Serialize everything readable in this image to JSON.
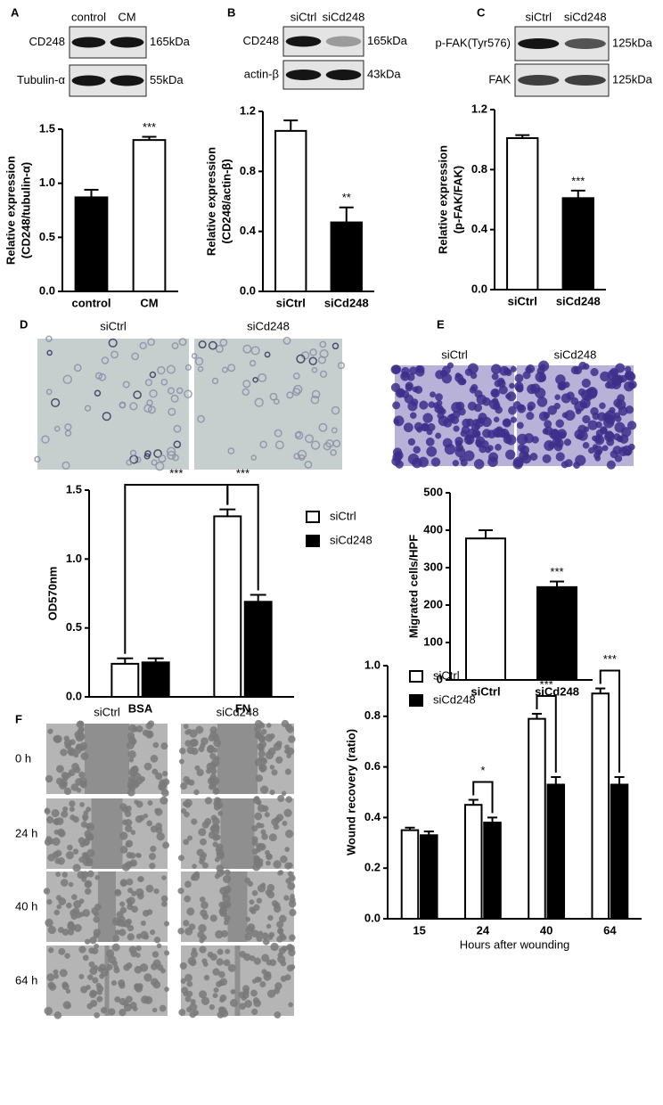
{
  "chart_data": [
    {
      "type": "bar",
      "panel": "A",
      "categories": [
        "control",
        "CM"
      ],
      "values": [
        0.87,
        1.4
      ],
      "errors": [
        0.07,
        0.03
      ],
      "colors": [
        "#000000",
        "#ffffff"
      ],
      "ylabel": [
        "Relative expression",
        "(CD248/tubulin-α)"
      ],
      "ylim": [
        0,
        1.5
      ],
      "yticks": [
        {
          "value": 0,
          "label": "0.0"
        },
        {
          "value": 0.5,
          "label": "0.5"
        },
        {
          "value": 1,
          "label": "1.0"
        },
        {
          "value": 1.5,
          "label": "1.5"
        }
      ],
      "significance": [
        null,
        "***"
      ]
    },
    {
      "type": "bar",
      "panel": "B",
      "categories": [
        "siCtrl",
        "siCd248"
      ],
      "values": [
        1.07,
        0.46
      ],
      "errors": [
        0.07,
        0.1
      ],
      "colors": [
        "#ffffff",
        "#000000"
      ],
      "ylabel": [
        "Relative expression",
        "(CD248/actin-β)"
      ],
      "ylim": [
        0,
        1.2
      ],
      "yticks": [
        {
          "value": 0,
          "label": "0.0"
        },
        {
          "value": 0.4,
          "label": "0.4"
        },
        {
          "value": 0.8,
          "label": "0.8"
        },
        {
          "value": 1.2,
          "label": "1.2"
        }
      ],
      "significance": [
        null,
        "**"
      ]
    },
    {
      "type": "bar",
      "panel": "C",
      "categories": [
        "siCtrl",
        "siCd248"
      ],
      "values": [
        1.01,
        0.61
      ],
      "errors": [
        0.02,
        0.05
      ],
      "colors": [
        "#ffffff",
        "#000000"
      ],
      "ylabel": [
        "Relative expression",
        "(p-FAK/FAK)"
      ],
      "ylim": [
        0,
        1.2
      ],
      "yticks": [
        {
          "value": 0,
          "label": "0.0"
        },
        {
          "value": 0.4,
          "label": "0.4"
        },
        {
          "value": 0.8,
          "label": "0.8"
        },
        {
          "value": 1.2,
          "label": "1.2"
        }
      ],
      "significance": [
        null,
        "***"
      ]
    },
    {
      "type": "grouped_bar",
      "panel": "D",
      "categories": [
        "BSA",
        "FN"
      ],
      "series": [
        {
          "name": "siCtrl",
          "color": "#ffffff",
          "values": [
            0.24,
            1.31
          ],
          "errors": [
            0.04,
            0.05
          ]
        },
        {
          "name": "siCd248",
          "color": "#000000",
          "values": [
            0.25,
            0.69
          ],
          "errors": [
            0.03,
            0.05
          ]
        }
      ],
      "ylabel": [
        "OD570nm"
      ],
      "ylim": [
        0,
        1.5
      ],
      "yticks": [
        {
          "value": 0,
          "label": "0.0"
        },
        {
          "value": 0.5,
          "label": "0.5"
        },
        {
          "value": 1,
          "label": "1.0"
        },
        {
          "value": 1.5,
          "label": "1.5"
        }
      ],
      "brackets": [
        "***",
        "***"
      ],
      "legend": "right"
    },
    {
      "type": "bar",
      "panel": "E",
      "categories": [
        "siCtrl",
        "siCd248"
      ],
      "values": [
        378,
        248
      ],
      "errors": [
        22,
        15
      ],
      "colors": [
        "#ffffff",
        "#000000"
      ],
      "ylabel": [
        "Migrated cells/HPF"
      ],
      "ylim": [
        0,
        500
      ],
      "yticks": [
        0,
        100,
        200,
        300,
        400,
        500
      ],
      "significance": [
        null,
        "***"
      ]
    },
    {
      "type": "grouped_bar",
      "panel": "F",
      "categories": [
        "15",
        "24",
        "40",
        "64"
      ],
      "series": [
        {
          "name": "siCtrl",
          "color": "#ffffff",
          "values": [
            0.35,
            0.45,
            0.79,
            0.89
          ],
          "errors": [
            0.01,
            0.02,
            0.02,
            0.02
          ]
        },
        {
          "name": "siCd248",
          "color": "#000000",
          "values": [
            0.33,
            0.38,
            0.53,
            0.53
          ],
          "errors": [
            0.015,
            0.02,
            0.03,
            0.03
          ]
        }
      ],
      "xlabel": "Hours after wounding",
      "ylabel": [
        "Wound recovery (ratio)"
      ],
      "ylim": [
        0,
        1.0
      ],
      "yticks": [
        {
          "value": 0,
          "label": "0.0"
        },
        {
          "value": 0.2,
          "label": "0.2"
        },
        {
          "value": 0.4,
          "label": "0.4"
        },
        {
          "value": 0.6,
          "label": "0.6"
        },
        {
          "value": 0.8,
          "label": "0.8"
        },
        {
          "value": 1,
          "label": "1.0"
        }
      ],
      "significance": [
        null,
        "*",
        "***",
        "***"
      ],
      "legend": "upper left"
    }
  ],
  "blots": [
    {
      "lanes": [
        "control",
        "CM"
      ],
      "rows": [
        {
          "label": "CD248",
          "size": "165kDa"
        },
        {
          "label": "Tubulin-α",
          "size": "55kDa"
        }
      ]
    },
    {
      "lanes": [
        "siCtrl",
        "siCd248"
      ],
      "rows": [
        {
          "label": "CD248",
          "size": "165kDa"
        },
        {
          "label": "actin-β",
          "size": "43kDa"
        }
      ]
    },
    {
      "lanes": [
        "siCtrl",
        "siCd248"
      ],
      "rows": [
        {
          "label": "p-FAK(Tyr576)",
          "size": "125kDa"
        },
        {
          "label": "FAK",
          "size": "125kDa"
        }
      ]
    }
  ],
  "micrographs": [
    {
      "lanes": [
        "siCtrl",
        "siCd248"
      ]
    },
    {
      "lanes": [
        "siCtrl",
        "siCd248"
      ]
    },
    {
      "lanes": [
        "siCtrl",
        "siCd248"
      ],
      "rows": [
        "0 h",
        "24 h",
        "40 h",
        "64 h"
      ]
    }
  ]
}
